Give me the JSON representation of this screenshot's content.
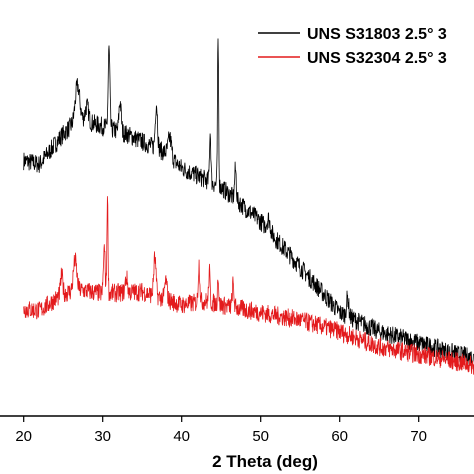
{
  "chart_data": {
    "type": "line",
    "title": "",
    "xlabel": "2 Theta (deg)",
    "ylabel": "",
    "xlim": [
      17,
      77
    ],
    "ylim": [
      0,
      1
    ],
    "x_ticks": [
      "20",
      "30",
      "40",
      "50",
      "60",
      "70"
    ],
    "x_tick_values": [
      20,
      30,
      40,
      50,
      60,
      70
    ],
    "grid": false,
    "legend_position": "top-right",
    "series": [
      {
        "name": "UNS S31803 2.5° 3",
        "color": "#000000",
        "baseline": [
          [
            20,
            0.63
          ],
          [
            22,
            0.62
          ],
          [
            25,
            0.7
          ],
          [
            27,
            0.74
          ],
          [
            30,
            0.72
          ],
          [
            33,
            0.7
          ],
          [
            35,
            0.68
          ],
          [
            38,
            0.65
          ],
          [
            40,
            0.61
          ],
          [
            43,
            0.58
          ],
          [
            45,
            0.56
          ],
          [
            50,
            0.47
          ],
          [
            55,
            0.35
          ],
          [
            60,
            0.23
          ],
          [
            65,
            0.18
          ],
          [
            70,
            0.15
          ],
          [
            75,
            0.12
          ],
          [
            77,
            0.11
          ]
        ],
        "peaks": [
          [
            26.8,
            0.09,
            0.4
          ],
          [
            28.0,
            0.04,
            0.3
          ],
          [
            30.8,
            0.21,
            0.15
          ],
          [
            32.2,
            0.08,
            0.2
          ],
          [
            36.8,
            0.12,
            0.2
          ],
          [
            38.5,
            0.05,
            0.3
          ],
          [
            43.6,
            0.13,
            0.12
          ],
          [
            44.6,
            0.38,
            0.1
          ],
          [
            46.8,
            0.08,
            0.15
          ],
          [
            51.0,
            0.03,
            0.3
          ],
          [
            61.0,
            0.05,
            0.2
          ]
        ]
      },
      {
        "name": "UNS S32304 2.5° 3",
        "color": "#e31a1c",
        "baseline": [
          [
            20,
            0.24
          ],
          [
            22,
            0.235
          ],
          [
            25,
            0.28
          ],
          [
            27,
            0.29
          ],
          [
            30,
            0.28
          ],
          [
            35,
            0.285
          ],
          [
            38,
            0.265
          ],
          [
            40,
            0.25
          ],
          [
            43,
            0.26
          ],
          [
            45,
            0.25
          ],
          [
            50,
            0.23
          ],
          [
            55,
            0.21
          ],
          [
            60,
            0.18
          ],
          [
            65,
            0.14
          ],
          [
            70,
            0.12
          ],
          [
            75,
            0.1
          ],
          [
            77,
            0.09
          ]
        ],
        "peaks": [
          [
            24.8,
            0.05,
            0.2
          ],
          [
            26.5,
            0.08,
            0.3
          ],
          [
            30.2,
            0.12,
            0.15
          ],
          [
            30.6,
            0.25,
            0.1
          ],
          [
            33.0,
            0.04,
            0.2
          ],
          [
            36.6,
            0.1,
            0.2
          ],
          [
            38.0,
            0.05,
            0.2
          ],
          [
            42.2,
            0.1,
            0.15
          ],
          [
            43.5,
            0.08,
            0.12
          ],
          [
            44.6,
            0.08,
            0.1
          ],
          [
            46.5,
            0.06,
            0.15
          ]
        ]
      }
    ]
  }
}
